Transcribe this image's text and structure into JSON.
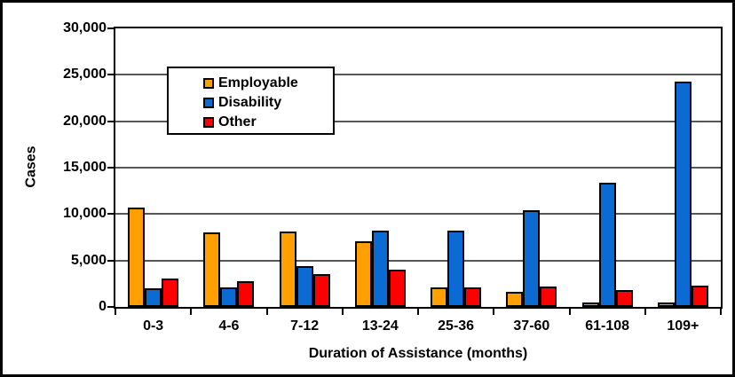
{
  "window": {
    "background_color": "#ffffff",
    "border_color": "#000000"
  },
  "chart_data": {
    "type": "bar",
    "title": "",
    "xlabel": "Duration of Assistance (months)",
    "ylabel": "Cases",
    "categories": [
      "0-3",
      "4-6",
      "7-12",
      "13-24",
      "25-36",
      "37-60",
      "61-108",
      "109+"
    ],
    "series": [
      {
        "name": "Employable",
        "color": "#FFA000",
        "values": [
          10700,
          8000,
          8100,
          7100,
          2100,
          1600,
          500,
          450
        ]
      },
      {
        "name": "Disability",
        "color": "#0C6BD2",
        "values": [
          2000,
          2100,
          4400,
          8200,
          8200,
          10400,
          13400,
          24300
        ]
      },
      {
        "name": "Other",
        "color": "#FF0000",
        "values": [
          3100,
          2800,
          3500,
          4000,
          2100,
          2200,
          1800,
          2300
        ]
      }
    ],
    "ylim": [
      0,
      30000
    ],
    "ytick_interval": 5000,
    "ytick_labels": [
      "0",
      "5,000",
      "10,000",
      "15,000",
      "20,000",
      "25,000",
      "30,000"
    ],
    "grid": "horizontal",
    "gridline_color": "#565656",
    "bar_outline_color": "#000000",
    "legend_position": "inside-upper-left",
    "legend_border_color": "#000000"
  }
}
